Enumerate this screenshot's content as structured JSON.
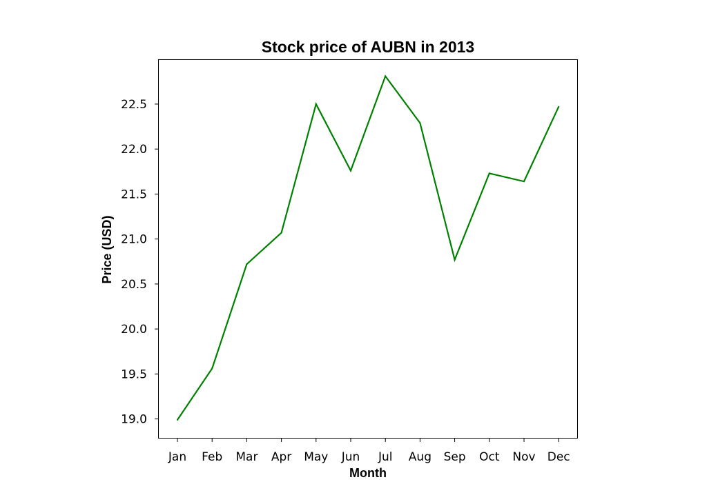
{
  "chart_data": {
    "type": "line",
    "title": "Stock price of AUBN in 2013",
    "xlabel": "Month",
    "ylabel": "Price (USD)",
    "categories": [
      "Jan",
      "Feb",
      "Mar",
      "Apr",
      "May",
      "Jun",
      "Jul",
      "Aug",
      "Sep",
      "Oct",
      "Nov",
      "Dec"
    ],
    "series": [
      {
        "values": [
          18.99,
          19.56,
          20.72,
          21.07,
          22.5,
          21.76,
          22.81,
          22.29,
          20.77,
          21.73,
          21.64,
          22.47
        ],
        "color": "#008000"
      }
    ],
    "yticks": [
      19.0,
      19.5,
      20.0,
      20.5,
      21.0,
      21.5,
      22.0,
      22.5
    ],
    "ylim": [
      18.79,
      22.99
    ],
    "grid": false,
    "legend": "none"
  }
}
